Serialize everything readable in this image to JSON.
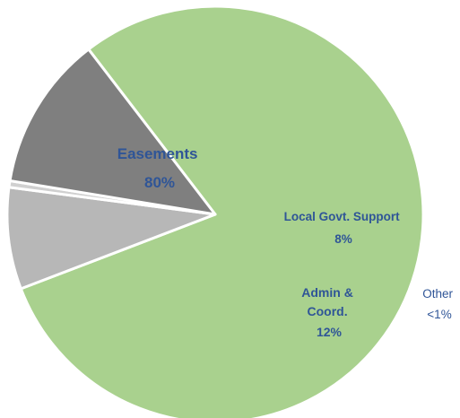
{
  "chart_data": {
    "type": "pie",
    "title": "",
    "slices": [
      {
        "name": "Easements",
        "value": 79.6,
        "display_name": "Easements",
        "display_value": "80%",
        "color": "#a9d18e"
      },
      {
        "name": "Local Govt. Support",
        "value": 7.9,
        "display_name": "Local Govt. Support",
        "display_value": "8%",
        "color": "#b7b7b7"
      },
      {
        "name": "Other",
        "value": 0.5,
        "display_name": "Other",
        "display_value": "<1%",
        "color": "#d0d0d0"
      },
      {
        "name": "Admin & Coord.",
        "value": 12.0,
        "display_name": "Admin & Coord.",
        "display_value": "12%",
        "color": "#7f7f7f"
      }
    ],
    "legend": "none",
    "label_color": "#2f5597",
    "slice_border_color": "#ffffff"
  }
}
